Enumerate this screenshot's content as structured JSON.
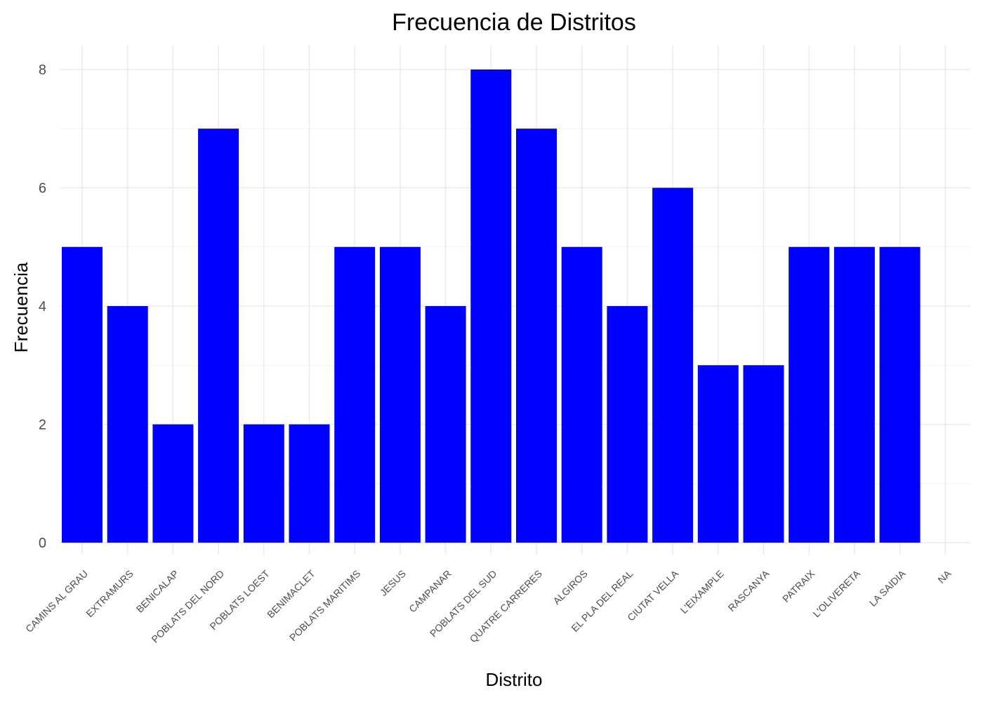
{
  "chart_data": {
    "type": "bar",
    "title": "Frecuencia de Distritos",
    "xlabel": "Distrito",
    "ylabel": "Frecuencia",
    "categories": [
      "CAMINS AL GRAU",
      "EXTRAMURS",
      "BENICALAP",
      "POBLATS DEL NORD",
      "POBLATS LOEST",
      "BENIMACLET",
      "POBLATS MARITIMS",
      "JESUS",
      "CAMPANAR",
      "POBLATS DEL SUD",
      "QUATRE CARRERES",
      "ALGIROS",
      "EL PLA DEL REAL",
      "CIUTAT VELLA",
      "L'EIXAMPLE",
      "RASCANYA",
      "PATRAIX",
      "L'OLIVERETA",
      "LA SAIDIA",
      "NA"
    ],
    "values": [
      5,
      4,
      2,
      7,
      2,
      2,
      5,
      5,
      4,
      8,
      7,
      5,
      4,
      6,
      3,
      3,
      5,
      5,
      5,
      0
    ],
    "ylim": [
      0,
      8
    ],
    "yticks": [
      0,
      2,
      4,
      6,
      8
    ],
    "bar_color": "#0000ff",
    "grid": true,
    "legend": "none"
  }
}
